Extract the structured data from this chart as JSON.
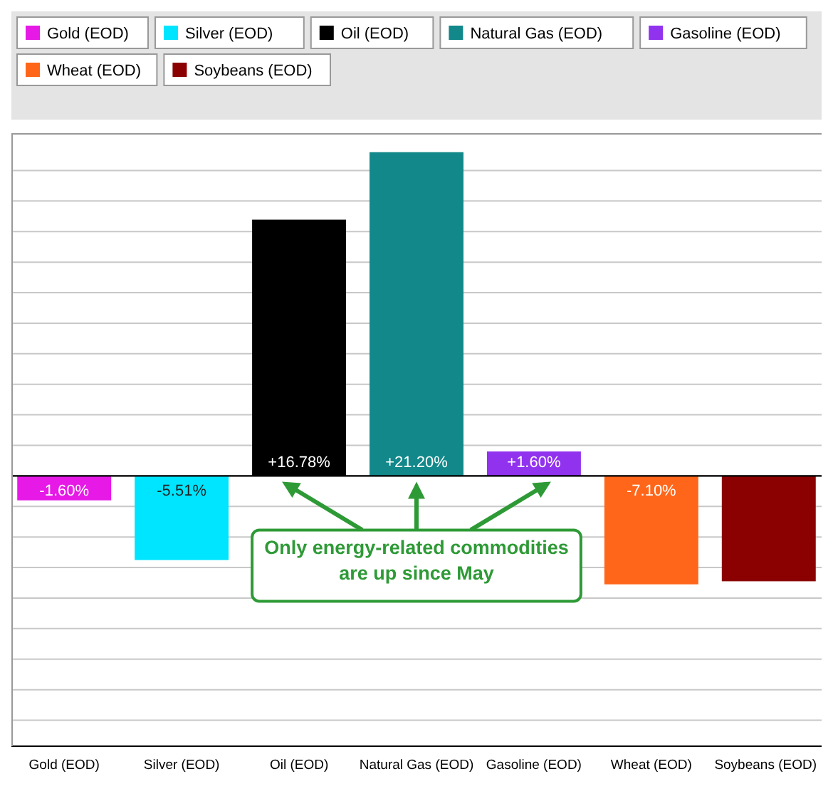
{
  "chart_data": {
    "type": "bar",
    "categories": [
      "Gold (EOD)",
      "Silver (EOD)",
      "Oil (EOD)",
      "Natural Gas (EOD)",
      "Gasoline (EOD)",
      "Wheat (EOD)",
      "Soybeans (EOD)"
    ],
    "values": [
      -1.6,
      -5.51,
      16.78,
      21.2,
      1.6,
      -7.1,
      -6.9
    ],
    "colors": [
      "#e619e6",
      "#00e5ff",
      "#000000",
      "#12888a",
      "#9133ee",
      "#ff6619",
      "#8b0000"
    ],
    "value_labels": [
      "-1.60%",
      "-5.51%",
      "+16.78%",
      "+21.20%",
      "+1.60%",
      "-7.10%",
      null
    ],
    "ylim": [
      -17.7,
      22.4
    ],
    "yticks": [
      {
        "value": -16,
        "label": null
      },
      {
        "value": -14,
        "label": null
      },
      {
        "value": -12,
        "label": null
      },
      {
        "value": -10,
        "label": null
      },
      {
        "value": -8,
        "label": null
      },
      {
        "value": -6,
        "label": null
      },
      {
        "value": -4,
        "label": null
      },
      {
        "value": -2,
        "label": null
      },
      {
        "value": 0,
        "label": null
      },
      {
        "value": 2,
        "label": null
      },
      {
        "value": 4,
        "label": null
      },
      {
        "value": 6,
        "label": null
      },
      {
        "value": 8,
        "label": null
      },
      {
        "value": 10,
        "label": null
      },
      {
        "value": 12,
        "label": null
      },
      {
        "value": 14,
        "label": null
      },
      {
        "value": 16,
        "label": null
      },
      {
        "value": 18,
        "label": null
      },
      {
        "value": 20,
        "label": null
      }
    ],
    "grid": "y",
    "tick_labels": "x",
    "annotations": [
      {
        "text": "Only energy-related commodities are up since May"
      }
    ]
  }
}
